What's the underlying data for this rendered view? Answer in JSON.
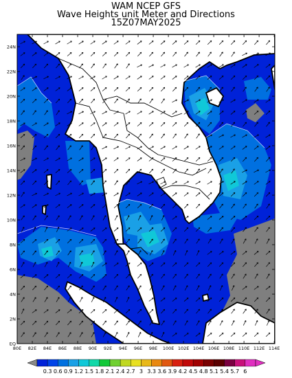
{
  "title": {
    "line1": "WAM NCEP GFS",
    "line2": "Wave Heights unit Meter and Directions",
    "line3": "15Z07MAY2025"
  },
  "axes": {
    "x_ticks": [
      "80E",
      "82E",
      "84E",
      "86E",
      "88E",
      "90E",
      "92E",
      "94E",
      "96E",
      "98E",
      "100E",
      "102E",
      "104E",
      "106E",
      "108E",
      "110E",
      "112E",
      "114E"
    ],
    "y_ticks": [
      "EQ",
      "2N",
      "4N",
      "6N",
      "8N",
      "10N",
      "12N",
      "14N",
      "16N",
      "18N",
      "20N",
      "22N",
      "24N"
    ]
  },
  "legend": {
    "labels": [
      "0.3",
      "0.6",
      "0.9",
      "1.2",
      "1.5",
      "1.8",
      "2.1",
      "2.4",
      "2.7",
      "3",
      "3.3",
      "3.6",
      "3.9",
      "4.2",
      "4.5",
      "4.8",
      "5.1",
      "5.4",
      "5.7",
      "6"
    ],
    "colors": [
      "#0022d8",
      "#0044e8",
      "#0070e0",
      "#1aa0e6",
      "#10c8d8",
      "#10d8a8",
      "#10c838",
      "#70d030",
      "#c0d820",
      "#e8e020",
      "#e8b818",
      "#e88810",
      "#e05810",
      "#d82010",
      "#c00808",
      "#a00000",
      "#780000",
      "#5a0000",
      "#7a0040",
      "#c8107a",
      "#e030c0"
    ]
  },
  "colors": {
    "land": "#ffffff",
    "nodata": "#7f7f7f",
    "coast": "#000000"
  }
}
